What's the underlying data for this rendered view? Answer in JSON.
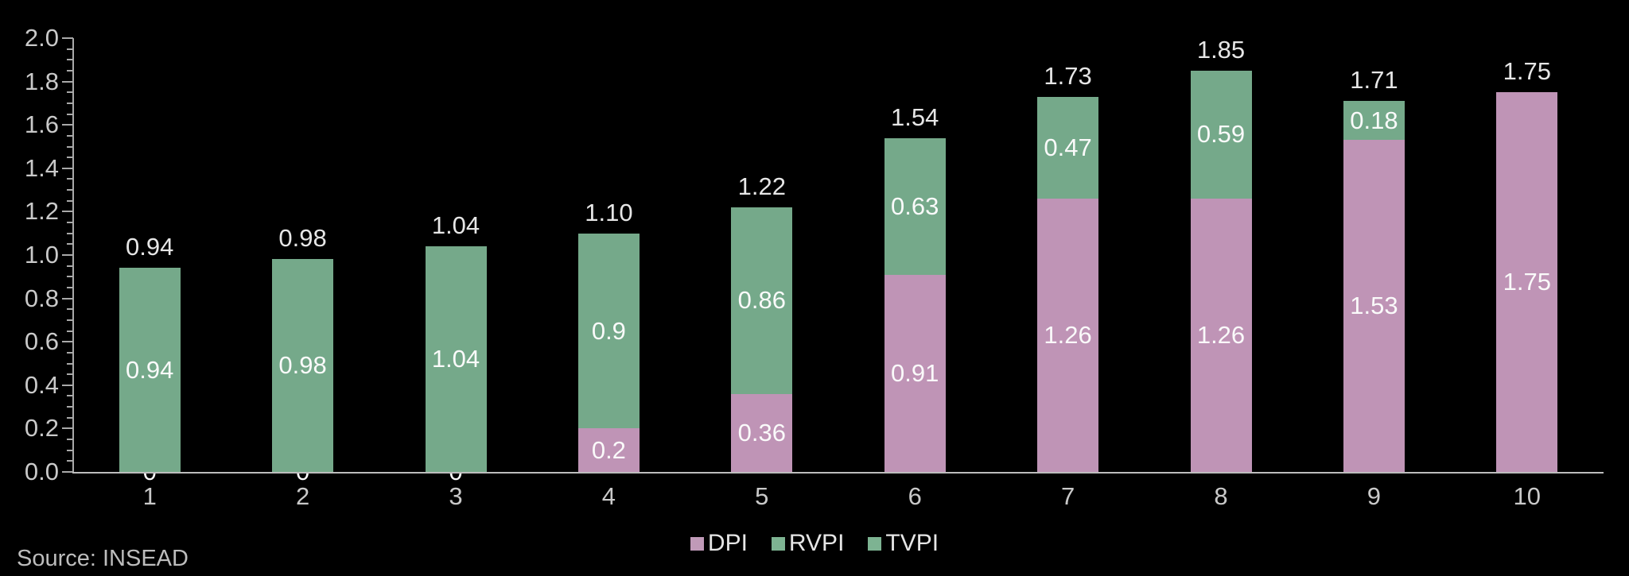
{
  "source": "Source: INSEAD",
  "legend": [
    {
      "label": "DPI",
      "color": "#c09ab8"
    },
    {
      "label": "RVPI",
      "color": "#7db392"
    },
    {
      "label": "TVPI",
      "color": "#7db392"
    }
  ],
  "chart_data": {
    "type": "bar",
    "stacked": true,
    "title": "",
    "xlabel": "",
    "ylabel": "",
    "categories": [
      "1",
      "2",
      "3",
      "4",
      "5",
      "6",
      "7",
      "8",
      "9",
      "10"
    ],
    "series": [
      {
        "name": "DPI",
        "color": "#bf94b6",
        "values": [
          0,
          0,
          0,
          0.2,
          0.36,
          0.91,
          1.26,
          1.26,
          1.53,
          1.75
        ],
        "labels": [
          "0",
          "0",
          "0",
          "0.2",
          "0.36",
          "0.91",
          "1.26",
          "1.26",
          "1.53",
          "1.75"
        ]
      },
      {
        "name": "RVPI",
        "color": "#75a98a",
        "values": [
          0.94,
          0.98,
          1.04,
          0.9,
          0.86,
          0.63,
          0.47,
          0.59,
          0.18,
          0
        ],
        "labels": [
          "0.94",
          "0.98",
          "1.04",
          "0.9",
          "0.86",
          "0.63",
          "0.47",
          "0.59",
          "0.18",
          ""
        ]
      }
    ],
    "totals": [
      0.94,
      0.98,
      1.04,
      1.1,
      1.22,
      1.54,
      1.73,
      1.85,
      1.71,
      1.75
    ],
    "total_labels": [
      "0.94",
      "0.98",
      "1.04",
      "1.10",
      "1.22",
      "1.54",
      "1.73",
      "1.85",
      "1.71",
      "1.75"
    ],
    "ylim": [
      0,
      2.0
    ],
    "ytick_step": 0.2,
    "ytick_minor_step": 0.05,
    "yticks": [
      "0.0",
      "0.2",
      "0.4",
      "0.6",
      "0.8",
      "1.0",
      "1.2",
      "1.4",
      "1.6",
      "1.8",
      "2.0"
    ],
    "grid": false,
    "legend_position": "bottom-center",
    "background": "#000000"
  }
}
